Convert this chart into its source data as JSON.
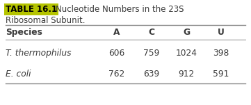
{
  "title_label": "TABLE 16.1",
  "title_label_bg": "#b5c400",
  "title_rest": "    Nucleotide Numbers in the 23S",
  "title_line2": "Ribosomal Subunit.",
  "columns": [
    "Species",
    "A",
    "C",
    "G",
    "U"
  ],
  "rows": [
    [
      "T. thermophilus",
      "606",
      "759",
      "1024",
      "398"
    ],
    [
      "E. coli",
      "762",
      "639",
      "912",
      "591"
    ]
  ],
  "bg_color": "#ffffff",
  "text_color": "#3a3a3a",
  "line_color": "#888888",
  "title_fontsize": 8.5,
  "header_fontsize": 8.8,
  "data_fontsize": 8.8
}
